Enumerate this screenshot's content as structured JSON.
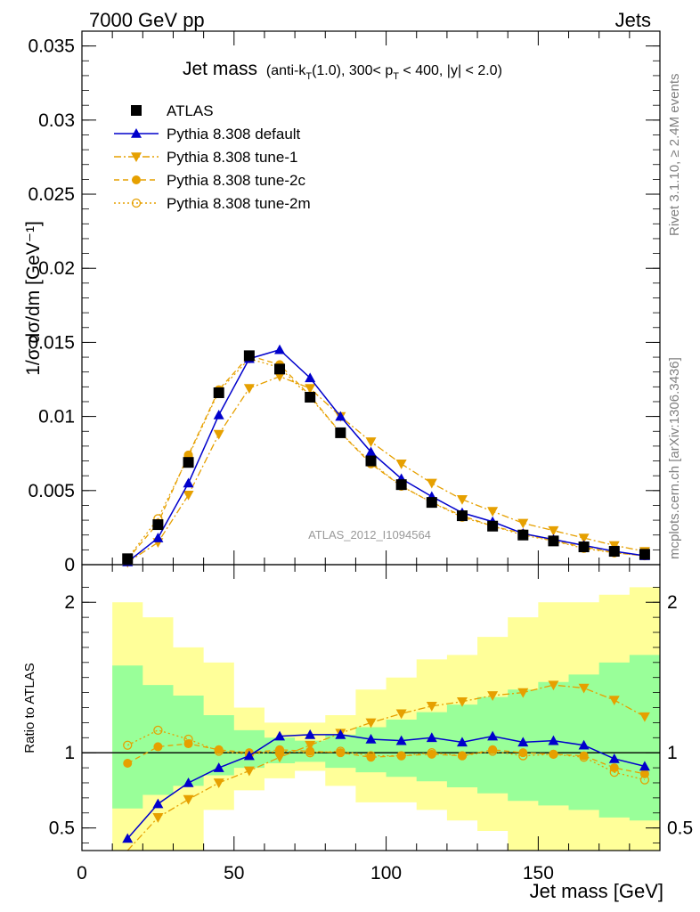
{
  "header": {
    "left": "7000 GeV pp",
    "right": "Jets"
  },
  "side_labels": {
    "rivet": "Rivet 3.1.10, ≥ 2.4M events",
    "mcplots": "mcplots.cern.ch [arXiv:1306.3436]"
  },
  "watermark": "ATLAS_2012_I1094564",
  "colors": {
    "atlas": "#000000",
    "default": "#0000cc",
    "tunes": "#e6a000",
    "band_inner": "#99ff99",
    "band_outer": "#ffff99"
  },
  "chart_data": [
    {
      "type": "line",
      "title_main": "Jet mass",
      "title_sub": "(anti-k",
      "title_sub_T": "T",
      "title_sub_mid": "(1.0), 300< p",
      "title_sub_T2": "T",
      "title_sub_end": " < 400, |y| < 2.0)",
      "ylabel": "1/σ dσ/dm [GeV⁻¹]",
      "xlim": [
        0,
        190
      ],
      "ylim": [
        0,
        0.036
      ],
      "yticks": [
        0,
        0.005,
        0.01,
        0.015,
        0.02,
        0.025,
        0.03,
        0.035
      ],
      "ytick_labels": [
        "0",
        "0.005",
        "0.01",
        "0.015",
        "0.02",
        "0.025",
        "0.03",
        "0.035"
      ],
      "x": [
        15,
        25,
        35,
        45,
        55,
        65,
        75,
        85,
        95,
        105,
        115,
        125,
        135,
        145,
        155,
        165,
        175,
        185
      ],
      "series": [
        {
          "name": "ATLAS",
          "key": "atlas",
          "values": [
            0.0004,
            0.0027,
            0.0069,
            0.0116,
            0.0141,
            0.0132,
            0.0113,
            0.0089,
            0.007,
            0.0054,
            0.0042,
            0.0033,
            0.0026,
            0.002,
            0.0016,
            0.0012,
            0.0009,
            0.0007
          ]
        },
        {
          "name": "Pythia 8.308 default",
          "key": "default",
          "values": [
            0.00018,
            0.0018,
            0.0055,
            0.0101,
            0.0139,
            0.0145,
            0.0126,
            0.01,
            0.0076,
            0.0058,
            0.0046,
            0.0035,
            0.0029,
            0.0021,
            0.0017,
            0.0013,
            0.0009,
            0.0006
          ]
        },
        {
          "name": "Pythia 8.308 tune-1",
          "key": "tune1",
          "values": [
            0.00015,
            0.0015,
            0.0047,
            0.0088,
            0.0119,
            0.0127,
            0.0119,
            0.01,
            0.0083,
            0.0068,
            0.0055,
            0.0044,
            0.0036,
            0.0028,
            0.0023,
            0.0018,
            0.0013,
            0.0009
          ]
        },
        {
          "name": "Pythia 8.308 tune-2c",
          "key": "tune2c",
          "values": [
            0.00037,
            0.0028,
            0.0074,
            0.0118,
            0.0141,
            0.0135,
            0.0114,
            0.0089,
            0.0068,
            0.0053,
            0.0042,
            0.0033,
            0.0026,
            0.0021,
            0.0016,
            0.0012,
            0.0008,
            0.0006
          ]
        },
        {
          "name": "Pythia 8.308 tune-2m",
          "key": "tune2m",
          "values": [
            0.00042,
            0.0031,
            0.0073,
            0.0117,
            0.0139,
            0.0133,
            0.0113,
            0.0089,
            0.0069,
            0.0053,
            0.0042,
            0.0032,
            0.0026,
            0.002,
            0.0016,
            0.0011,
            0.0008,
            0.0006
          ]
        }
      ],
      "legend_placement": "top-left"
    },
    {
      "type": "line",
      "ylabel": "Ratio to ATLAS",
      "xlabel": "Jet mass [GeV]",
      "xlim": [
        0,
        190
      ],
      "ylim": [
        0.35,
        2.25
      ],
      "xticks": [
        0,
        50,
        100,
        150
      ],
      "xtick_labels": [
        "0",
        "50",
        "100",
        "150"
      ],
      "yticks": [
        0.5,
        1,
        2
      ],
      "ytick_labels": [
        "0.5",
        "1",
        "2"
      ],
      "x": [
        15,
        25,
        35,
        45,
        55,
        65,
        75,
        85,
        95,
        105,
        115,
        125,
        135,
        145,
        155,
        165,
        175,
        185
      ],
      "bin_edges": [
        10,
        20,
        30,
        40,
        50,
        60,
        70,
        80,
        90,
        100,
        110,
        120,
        130,
        140,
        150,
        160,
        170,
        180,
        190
      ],
      "band_inner": {
        "low": [
          0.63,
          0.72,
          0.78,
          0.85,
          0.9,
          0.93,
          0.94,
          0.9,
          0.87,
          0.84,
          0.81,
          0.77,
          0.73,
          0.68,
          0.65,
          0.62,
          0.57,
          0.55
        ],
        "high": [
          1.58,
          1.45,
          1.38,
          1.25,
          1.15,
          1.1,
          1.08,
          1.12,
          1.17,
          1.22,
          1.27,
          1.32,
          1.37,
          1.42,
          1.47,
          1.52,
          1.6,
          1.65
        ]
      },
      "band_outer": {
        "low": [
          0.35,
          0.35,
          0.35,
          0.62,
          0.75,
          0.83,
          0.88,
          0.78,
          0.67,
          0.67,
          0.62,
          0.55,
          0.48,
          0.35,
          0.35,
          0.35,
          0.35,
          0.35
        ],
        "high": [
          2.0,
          1.9,
          1.7,
          1.6,
          1.3,
          1.2,
          1.2,
          1.25,
          1.42,
          1.5,
          1.62,
          1.65,
          1.77,
          1.9,
          2.0,
          2.0,
          2.05,
          2.1
        ]
      },
      "series": [
        {
          "name": "Pythia 8.308 default",
          "key": "default",
          "values": [
            0.43,
            0.66,
            0.8,
            0.9,
            0.98,
            1.11,
            1.12,
            1.12,
            1.09,
            1.08,
            1.1,
            1.07,
            1.11,
            1.07,
            1.08,
            1.05,
            0.96,
            0.91
          ]
        },
        {
          "name": "Pythia 8.308 tune-1",
          "key": "tune1",
          "values": [
            0.35,
            0.57,
            0.69,
            0.8,
            0.88,
            0.97,
            1.05,
            1.13,
            1.2,
            1.26,
            1.31,
            1.34,
            1.38,
            1.4,
            1.45,
            1.43,
            1.35,
            1.24
          ]
        },
        {
          "name": "Pythia 8.308 tune-2c",
          "key": "tune2c",
          "values": [
            0.93,
            1.04,
            1.06,
            1.02,
            1.0,
            1.02,
            1.01,
            1.0,
            0.97,
            0.98,
            0.99,
            0.98,
            1.02,
            1.0,
            0.99,
            0.98,
            0.9,
            0.86
          ]
        },
        {
          "name": "Pythia 8.308 tune-2m",
          "key": "tune2m",
          "values": [
            1.05,
            1.15,
            1.09,
            1.01,
            0.99,
            1.01,
            1.0,
            1.01,
            0.98,
            0.98,
            1.0,
            0.98,
            1.01,
            0.98,
            0.99,
            0.97,
            0.87,
            0.82
          ]
        }
      ]
    }
  ]
}
